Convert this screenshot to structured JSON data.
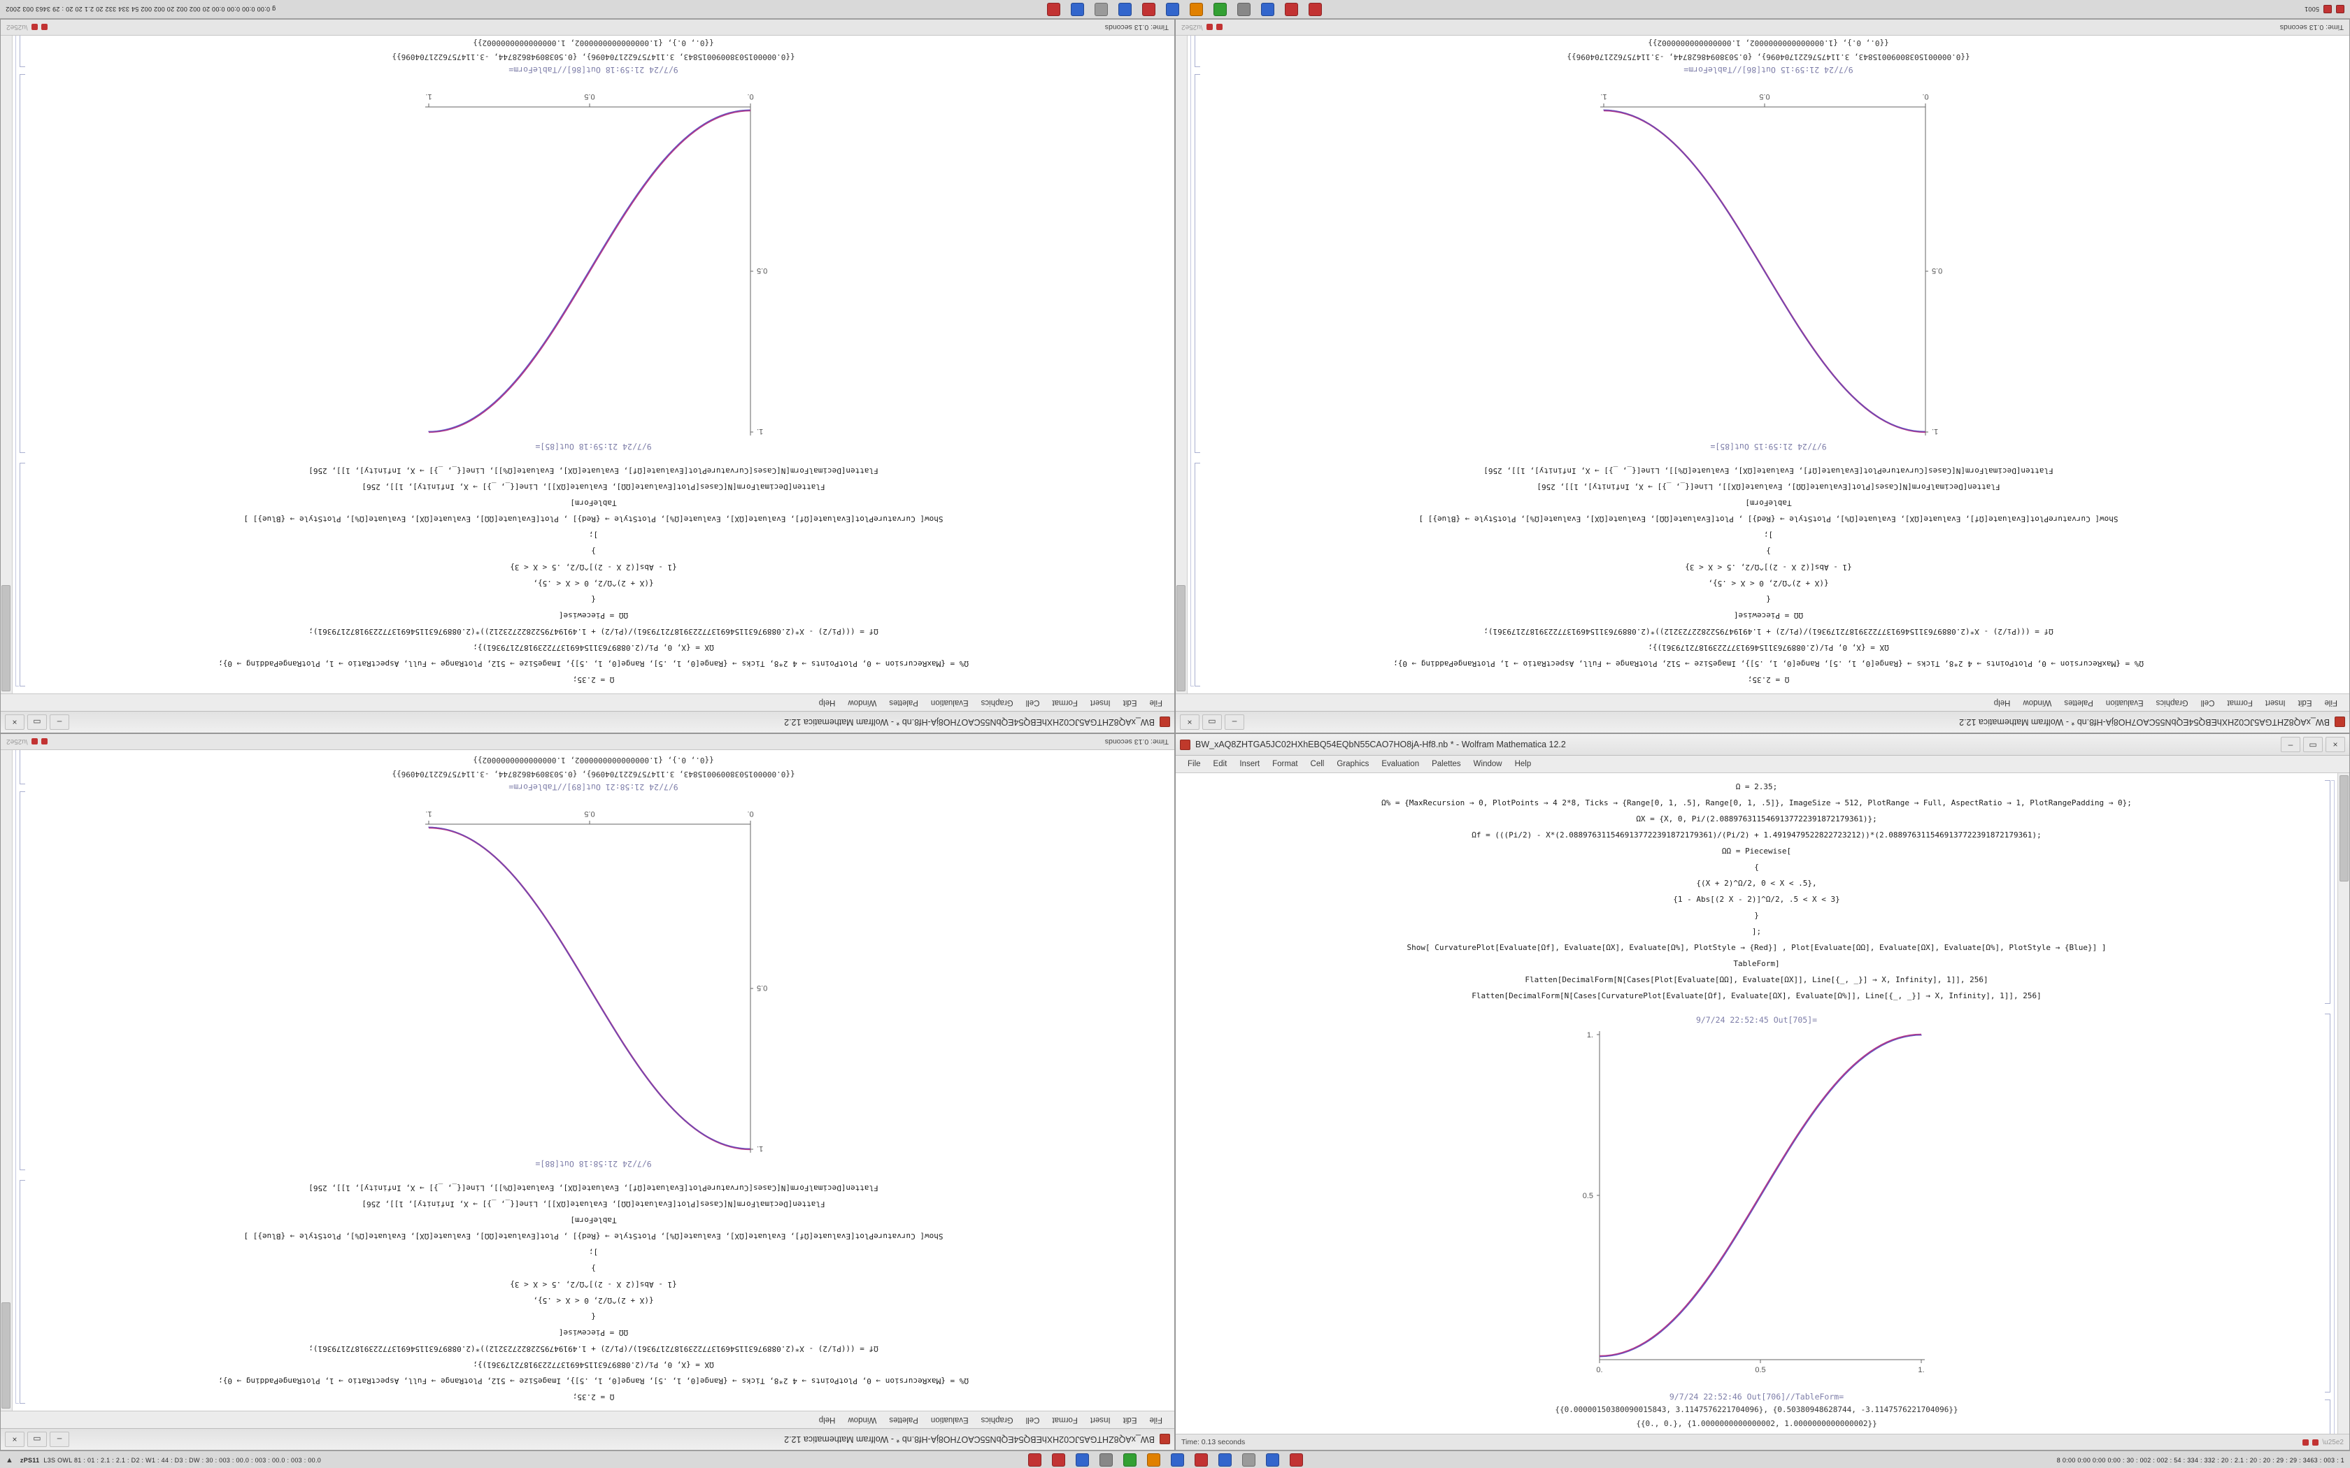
{
  "taskbar_top": {
    "left_text": "5001",
    "right_text": "g 0:00 0:00 0:00 0:00 20 002 002 20 002 002 54 334 332 20 2.1 20 20 : 29 3463 003 2002"
  },
  "taskbar_bottom": {
    "arrow": "▲",
    "left_label": "zPS11",
    "left_nums": "L3S OWL 81 : 01 : 2.1 : 2.1 : D2 : W1 : 44 : D3 : DW : 30 : 003 : 00.0 : 003 : 00.0 : 003 : 00.0",
    "right_text": "8 0:00 0:00 0:00 0:00 : 30 : 002 : 002 : 54 : 334 : 332 : 20 : 2.1 : 20 : 20 : 29 : 29 : 3463 : 003 : 1"
  },
  "taskbar_icons": [
    "#c23333",
    "#c23333",
    "#3366cc",
    "#888888",
    "#33a033",
    "#e08000",
    "#3366cc",
    "#c23333",
    "#3366cc",
    "#9a9a9a",
    "#3366cc",
    "#c23333"
  ],
  "chrome": {
    "minimize": "–",
    "maximize": "▭",
    "close": "×"
  },
  "menu": [
    "File",
    "Edit",
    "Insert",
    "Format",
    "Cell",
    "Graphics",
    "Evaluation",
    "Palettes",
    "Window",
    "Help"
  ],
  "notebook": {
    "in_lines": [
      "Ω = 2.35;",
      "Ω% = {MaxRecursion → 0, PlotPoints → 4 2*8, Ticks → {Range[0, 1, .5], Range[0, 1, .5]}, ImageSize → 512, PlotRange → Full, AspectRatio → 1, PlotRangePadding → 0};",
      "ΩX = {X, 0, Pi/(2.0889763115469137722391872179361)};",
      "Ωf = (((Pi/2) - X*(2.0889763115469137722391872179361)/(Pi/2) + 1.4919479522822723212))*(2.0889763115469137722391872179361);",
      "ΩΩ = Piecewise[",
      "{",
      "{(X + 2)^Ω/2, 0 < X < .5},",
      "{1 - Abs[(2 X - 2)]^Ω/2, .5 < X < 3}",
      "}",
      "];",
      "Show[ CurvaturePlot[Evaluate[Ωf], Evaluate[ΩX], Evaluate[Ω%], PlotStyle → {Red}] , Plot[Evaluate[ΩΩ], Evaluate[ΩX], Evaluate[Ω%], PlotStyle → {Blue}] ]",
      "TableForm]",
      "Flatten[DecimalForm[N[Cases[Plot[Evaluate[ΩΩ], Evaluate[ΩX]], Line[{_, _}] → X, Infinity], 1]], 256]",
      "Flatten[DecimalForm[N[Cases[CurvaturePlot[Evaluate[Ωf], Evaluate[ΩX], Evaluate[Ω%]], Line[{_, _}] → X, Infinity], 1]], 256]"
    ],
    "out_table_lines": [
      "{{0.00000150380090015843, 3.1147576221704096}, {0.50380948628744, -3.1147576221704096}}",
      "{{0., 0.}, {1.0000000000000002, 1.0000000000000002}}"
    ]
  },
  "plot_ticks": {
    "x": [
      "0.",
      "0.5",
      "1."
    ],
    "y": [
      "0.5",
      "1."
    ]
  },
  "windows": [
    {
      "id": "top-left",
      "rotated": true,
      "curve": "ascending",
      "title": "BW_xAQ8ZHTGA5JC02HXhEBQ54EQbN55CAO7HO8jA-Hf8.nb * - Wolfram Mathematica 12.2",
      "out1": "9/7/24 21:59:18 Out[85]=",
      "out2": "9/7/24 21:59:18 Out[86]//TableForm=",
      "status": "Time: 0.13 seconds"
    },
    {
      "id": "top-right",
      "rotated": true,
      "curve": "descending",
      "title": "BW_xAQ8ZHTGA5JC02HXhEBQ54EQbN55CAO7HO8jA-Hf8.nb * - Wolfram Mathematica 12.2",
      "out1": "9/7/24 21:59:15 Out[85]=",
      "out2": "9/7/24 21:59:15 Out[86]//TableForm=",
      "status": "Time: 0.13 seconds"
    },
    {
      "id": "bottom-left",
      "rotated": true,
      "curve": "descending",
      "title": "BW_xAQ8ZHTGA5JC02HXhEBQ54EQbN55CAO7HO8jA-Hf8.nb * - Wolfram Mathematica 12.2",
      "out1": "9/7/24 21:58:18 Out[88]=",
      "out2": "9/7/24 21:58:21 Out[89]//TableForm=",
      "status": "Time: 0.13 seconds"
    },
    {
      "id": "bottom-right",
      "rotated": false,
      "curve": "ascending",
      "title": "BW_xAQ8ZHTGA5JC02HXhEBQ54EQbN55CAO7HO8jA-Hf8.nb * - Wolfram Mathematica 12.2",
      "out1": "9/7/24 22:52:45 Out[705]=",
      "out2": "9/7/24 22:52:46 Out[706]//TableForm=",
      "status": "Time: 0.13 seconds"
    }
  ],
  "chart_data": [
    {
      "type": "line",
      "title": "Out[85] smoothstep curve (top-left, rotated window)",
      "x": [
        0,
        0.25,
        0.5,
        0.75,
        1
      ],
      "values": [
        0,
        0.1,
        0.5,
        0.9,
        1
      ],
      "xlabel": "",
      "ylabel": "",
      "xlim": [
        0,
        1
      ],
      "ylim": [
        0,
        1
      ],
      "xticks": [
        "0.",
        "0.5",
        "1."
      ],
      "yticks": [
        "0.5",
        "1."
      ],
      "grid": false,
      "legend": "none"
    },
    {
      "type": "line",
      "title": "Out[85] descending curve (top-right, rotated window)",
      "x": [
        0,
        0.25,
        0.5,
        0.75,
        1
      ],
      "values": [
        1,
        0.9,
        0.5,
        0.1,
        0
      ],
      "xlim": [
        0,
        1
      ],
      "ylim": [
        0,
        1
      ],
      "xticks": [
        "0.",
        "0.5",
        "1."
      ],
      "yticks": [
        "0.5",
        "1."
      ],
      "grid": false,
      "legend": "none"
    },
    {
      "type": "line",
      "title": "Out[88] descending curve (bottom-left, rotated window)",
      "x": [
        0,
        0.25,
        0.5,
        0.75,
        1
      ],
      "values": [
        1,
        0.9,
        0.5,
        0.1,
        0
      ],
      "xlim": [
        0,
        1
      ],
      "ylim": [
        0,
        1
      ],
      "xticks": [
        "0.",
        "0.5",
        "1."
      ],
      "yticks": [
        "0.5",
        "1."
      ],
      "grid": false,
      "legend": "none"
    },
    {
      "type": "line",
      "title": "Out[705] smoothstep curve (bottom-right window)",
      "x": [
        0,
        0.25,
        0.5,
        0.75,
        1
      ],
      "values": [
        0,
        0.1,
        0.5,
        0.9,
        1
      ],
      "xlim": [
        0,
        1
      ],
      "ylim": [
        0,
        1
      ],
      "xticks": [
        "0.",
        "0.5",
        "1."
      ],
      "yticks": [
        "0.5",
        "1."
      ],
      "grid": false,
      "legend": "none"
    }
  ]
}
